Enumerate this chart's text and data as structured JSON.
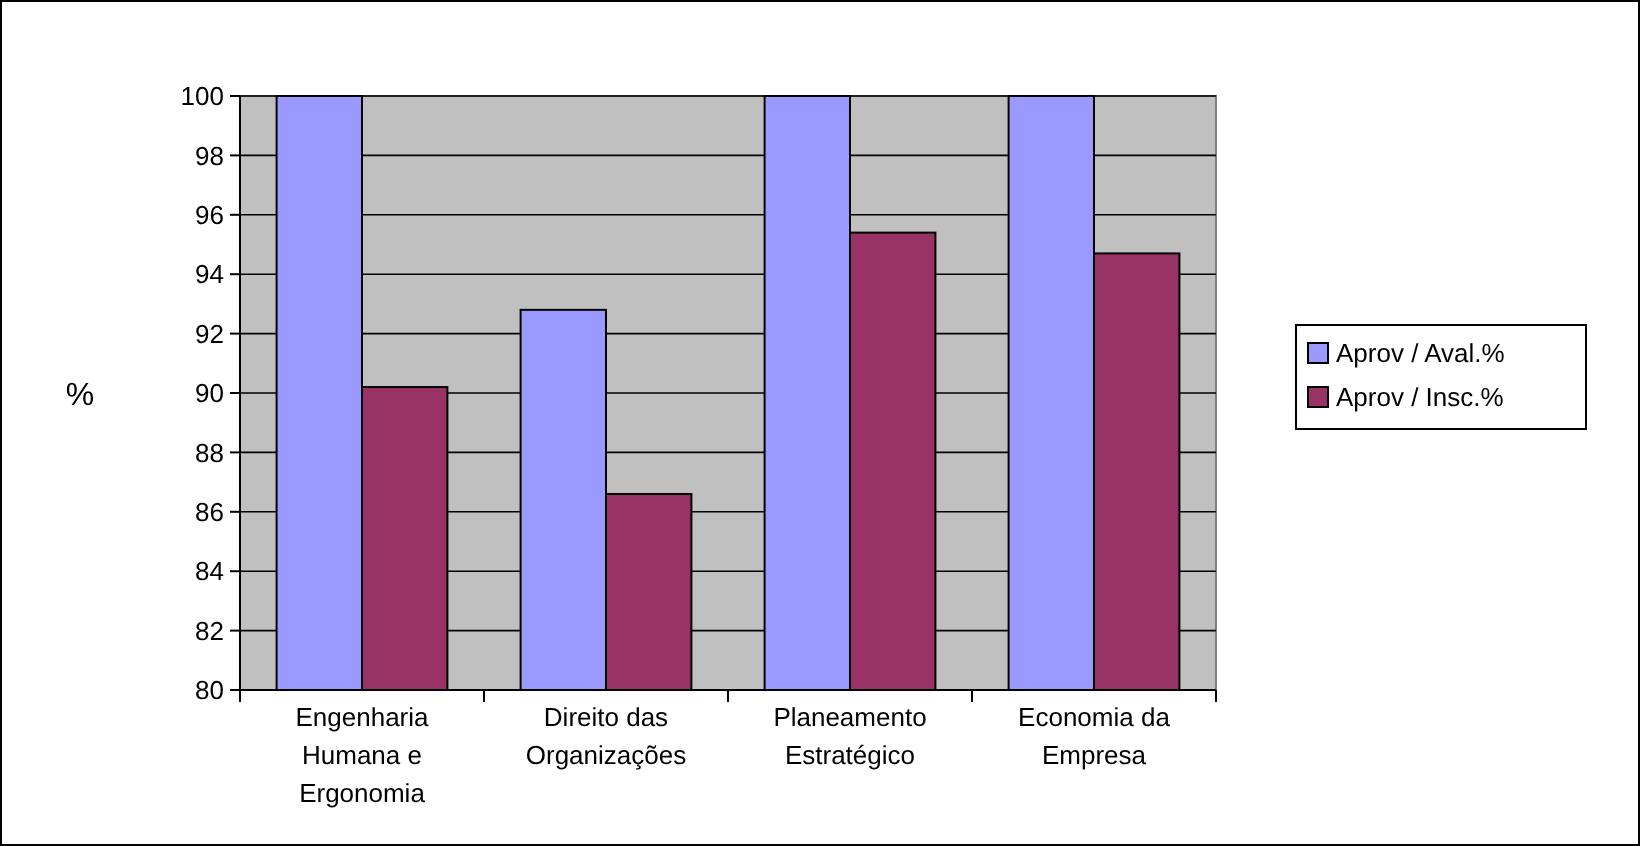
{
  "chart_data": {
    "type": "bar",
    "ylabel": "%",
    "categories": [
      "Engenharia\nHumana e\nErgonomia",
      "Direito das\nOrganizações",
      "Planeamento\nEstratégico",
      "Economia da\nEmpresa"
    ],
    "series": [
      {
        "name": "Aprov / Aval.%",
        "color": "#9999ff",
        "values": [
          100,
          92.8,
          100,
          100
        ]
      },
      {
        "name": "Aprov / Insc.%",
        "color": "#993366",
        "values": [
          90.2,
          86.6,
          95.4,
          94.7
        ]
      }
    ],
    "ylim": [
      80,
      100
    ],
    "yticks": [
      80,
      82,
      84,
      86,
      88,
      90,
      92,
      94,
      96,
      98,
      100
    ],
    "grid": "y",
    "legend": "right"
  }
}
